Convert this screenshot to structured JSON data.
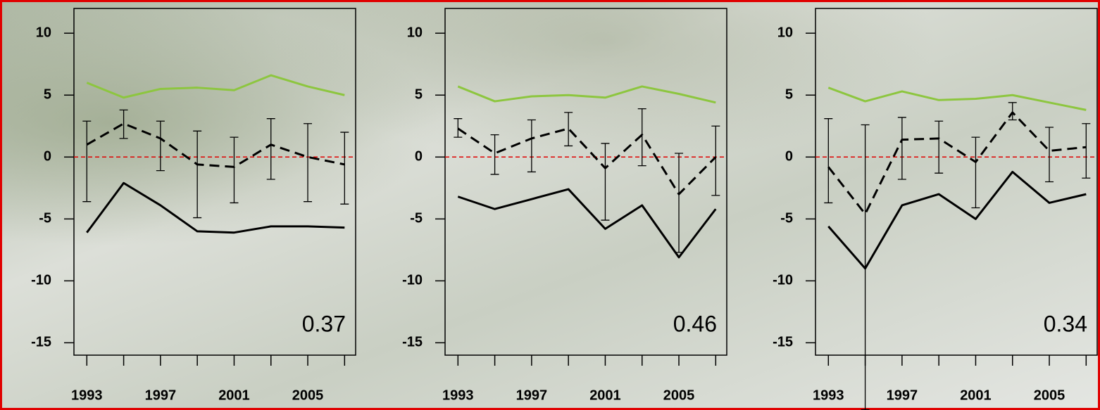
{
  "chart_data": [
    {
      "type": "line",
      "x": [
        1993,
        1995,
        1997,
        1999,
        2001,
        2003,
        2005,
        2007
      ],
      "xlim": [
        1992.3,
        2007.6
      ],
      "ylim": [
        -16,
        12
      ],
      "xticks": [
        1993,
        1997,
        2001,
        2005
      ],
      "xminorticks": [
        1995,
        1999,
        2003,
        2007
      ],
      "yticks": [
        10,
        5,
        0,
        -5,
        -10,
        -15
      ],
      "hline": 0,
      "hline_color": "#e00000",
      "series": [
        {
          "color": "#8dc63f",
          "values": [
            6.0,
            4.8,
            5.5,
            5.6,
            5.4,
            6.6,
            5.7,
            5.0
          ]
        },
        {
          "color": "#000000",
          "dash": true,
          "values": [
            1.0,
            2.7,
            1.5,
            -0.6,
            -0.8,
            1.0,
            0.0,
            -0.6
          ],
          "error_plus": [
            1.9,
            1.1,
            1.4,
            2.7,
            2.4,
            2.1,
            2.7,
            2.6
          ],
          "error_minus": [
            4.6,
            1.2,
            2.6,
            4.3,
            2.9,
            2.8,
            3.6,
            3.2
          ]
        },
        {
          "color": "#000000",
          "values": [
            -6.1,
            -2.1,
            -3.9,
            -6.0,
            -6.1,
            -5.6,
            -5.6,
            -5.7
          ]
        }
      ],
      "annotation": "0.37"
    },
    {
      "type": "line",
      "x": [
        1993,
        1995,
        1997,
        1999,
        2001,
        2003,
        2005,
        2007
      ],
      "xlim": [
        1992.3,
        2007.6
      ],
      "ylim": [
        -16,
        12
      ],
      "xticks": [
        1993,
        1997,
        2001,
        2005
      ],
      "xminorticks": [
        1995,
        1999,
        2003,
        2007
      ],
      "yticks": [
        10,
        5,
        0,
        -5,
        -10,
        -15
      ],
      "hline": 0,
      "hline_color": "#e00000",
      "series": [
        {
          "color": "#8dc63f",
          "values": [
            5.7,
            4.5,
            4.9,
            5.0,
            4.8,
            5.7,
            5.1,
            4.4
          ]
        },
        {
          "color": "#000000",
          "dash": true,
          "values": [
            2.3,
            0.3,
            1.5,
            2.3,
            -0.9,
            1.8,
            -3.0,
            0.0
          ],
          "error_plus": [
            0.8,
            1.5,
            1.5,
            1.3,
            2.0,
            2.1,
            3.3,
            2.5
          ],
          "error_minus": [
            0.7,
            1.7,
            2.7,
            1.4,
            4.2,
            2.5,
            4.7,
            3.1
          ]
        },
        {
          "color": "#000000",
          "values": [
            -3.2,
            -4.2,
            -3.4,
            -2.6,
            -5.8,
            -3.9,
            -8.1,
            -4.2
          ]
        }
      ],
      "annotation": "0.46"
    },
    {
      "type": "line",
      "x": [
        1993,
        1995,
        1997,
        1999,
        2001,
        2003,
        2005,
        2007
      ],
      "xlim": [
        1992.3,
        2007.6
      ],
      "ylim": [
        -16,
        12
      ],
      "xticks": [
        1993,
        1997,
        2001,
        2005
      ],
      "xminorticks": [
        1995,
        1999,
        2003,
        2007
      ],
      "yticks": [
        10,
        5,
        0,
        -5,
        -10,
        -15
      ],
      "hline": 0,
      "hline_color": "#e00000",
      "series": [
        {
          "color": "#8dc63f",
          "values": [
            5.6,
            4.5,
            5.3,
            4.6,
            4.7,
            5.0,
            4.4,
            3.8
          ]
        },
        {
          "color": "#000000",
          "dash": true,
          "values": [
            -0.8,
            -4.6,
            1.4,
            1.5,
            -0.4,
            3.6,
            0.5,
            0.8
          ],
          "error_plus": [
            3.9,
            7.2,
            1.8,
            1.4,
            2.0,
            0.8,
            1.9,
            1.9
          ],
          "error_minus": [
            2.9,
            15.8,
            3.2,
            2.8,
            3.7,
            0.6,
            2.5,
            2.5
          ]
        },
        {
          "color": "#000000",
          "values": [
            -5.6,
            -9.0,
            -3.9,
            -3.0,
            -5.0,
            -1.2,
            -3.7,
            -3.0
          ]
        }
      ],
      "annotation": "0.34"
    }
  ]
}
